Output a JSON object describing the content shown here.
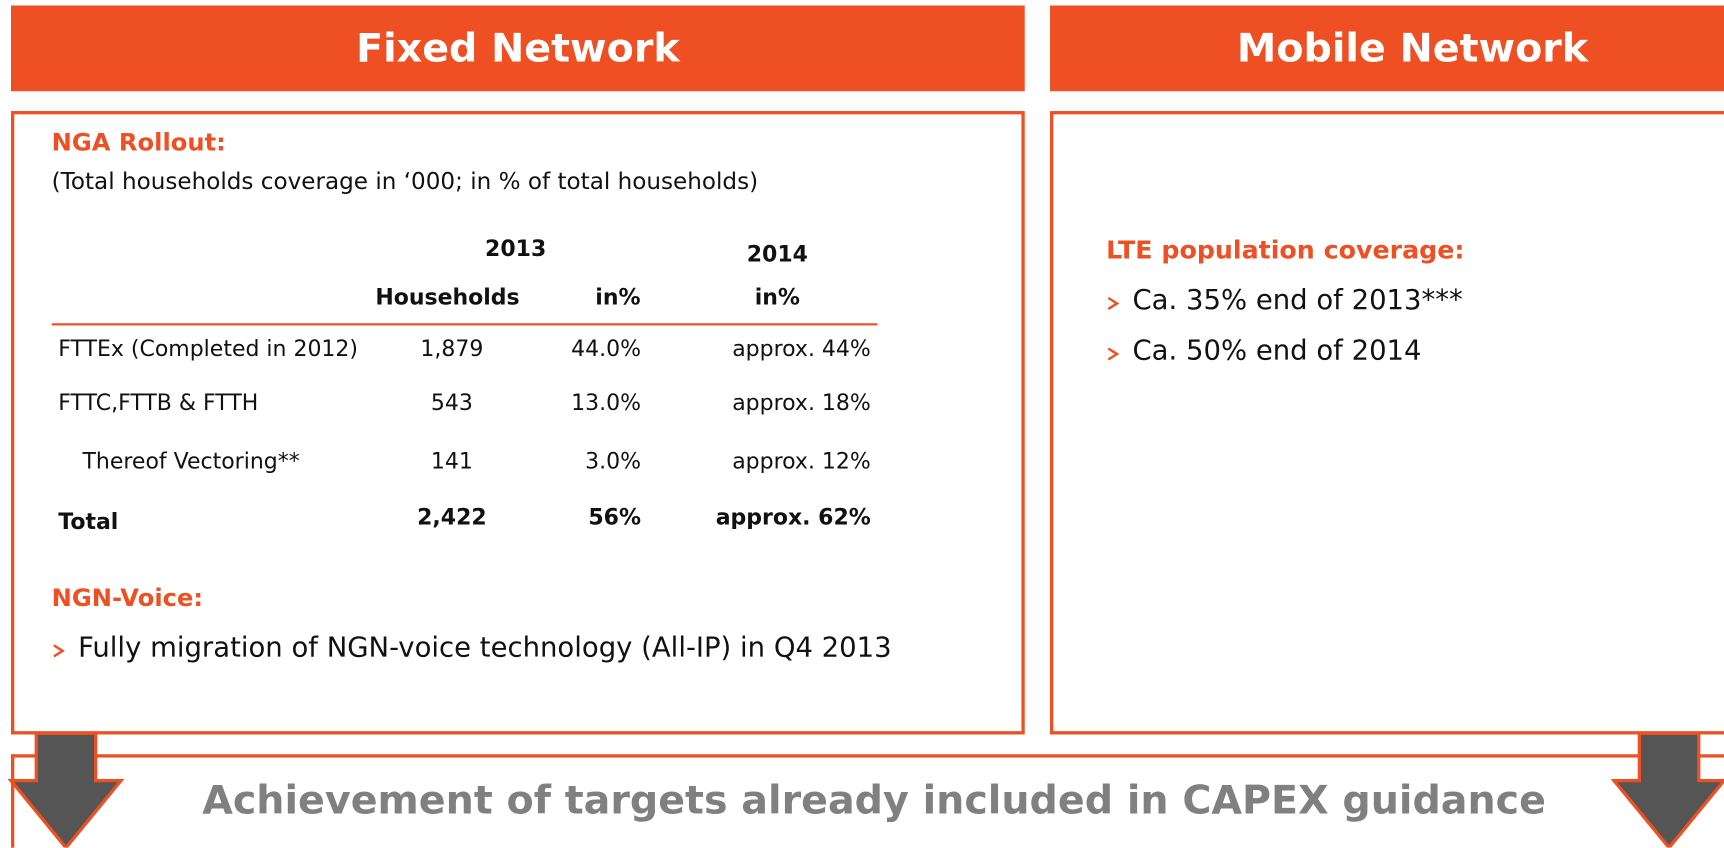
{
  "fixed": {
    "title": "Fixed Network",
    "nga": {
      "heading": "NGA Rollout:",
      "subtitle": "(Total households coverage in ‘000; in % of total households)",
      "table": {
        "years": [
          "2013",
          "2014"
        ],
        "columns": [
          "Households",
          "in%",
          "in%"
        ],
        "rows": [
          [
            "FTTEx (Completed in 2012)",
            "1,879",
            "44.0%",
            "approx. 44%"
          ],
          [
            "FTTC,FTTB & FTTH",
            "543",
            "13.0%",
            "approx. 18%"
          ],
          [
            "Thereof Vectoring**",
            "141",
            "3.0%",
            "approx. 12%"
          ],
          [
            "Total",
            "2,422",
            "56%",
            "approx. 62%"
          ]
        ]
      }
    },
    "ngn": {
      "heading": "NGN-Voice:",
      "bullets": [
        "Fully migration of NGN-voice technology (All-IP) in Q4 2013"
      ]
    }
  },
  "mobile": {
    "title": "Mobile Network",
    "lte": {
      "heading": "LTE population coverage:",
      "bullets": [
        "Ca. 35% end of 2013***",
        "Ca. 50% end of 2014"
      ]
    }
  },
  "footer": {
    "text": "Achievement of targets already included in CAPEX guidance"
  }
}
